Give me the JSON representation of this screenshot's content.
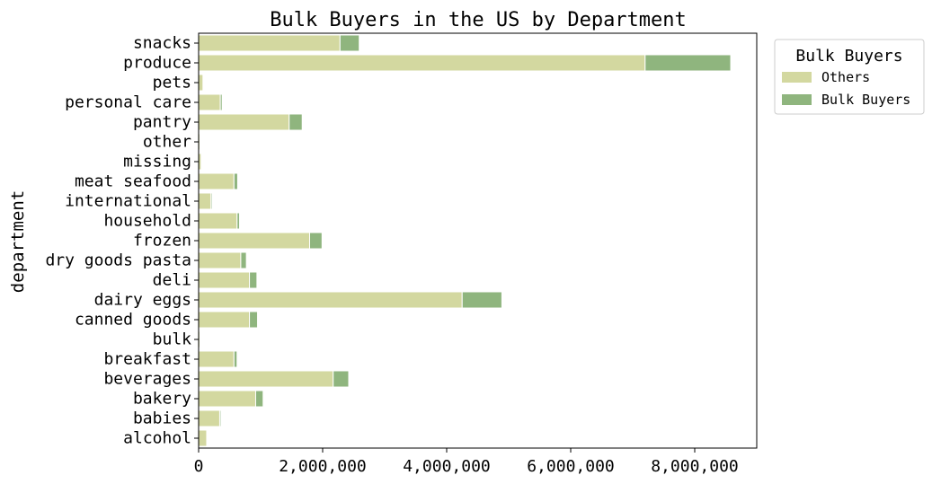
{
  "chart_data": {
    "type": "bar",
    "orientation": "horizontal",
    "stacked": true,
    "title": "Bulk Buyers in the US by Department",
    "xlabel": "",
    "ylabel": "department",
    "xlim": [
      0,
      9000000
    ],
    "xticks": [
      0,
      2000000,
      4000000,
      6000000,
      8000000
    ],
    "xtick_labels": [
      "0",
      "2,000,000",
      "4,000,000",
      "6,000,000",
      "8,000,000"
    ],
    "grid": false,
    "legend": {
      "title": "Bulk Buyers",
      "placement": "outside-top-right"
    },
    "categories": [
      "alcohol",
      "babies",
      "bakery",
      "beverages",
      "breakfast",
      "bulk",
      "canned goods",
      "dairy eggs",
      "deli",
      "dry goods pasta",
      "frozen",
      "household",
      "international",
      "meat seafood",
      "missing",
      "other",
      "pantry",
      "personal care",
      "pets",
      "produce",
      "snacks"
    ],
    "series": [
      {
        "name": "Others",
        "color": "#d3d8a0",
        "values": [
          130000,
          340000,
          920000,
          2170000,
          570000,
          20000,
          820000,
          4250000,
          820000,
          680000,
          1790000,
          620000,
          200000,
          570000,
          40000,
          20000,
          1460000,
          350000,
          70000,
          7200000,
          2280000
        ]
      },
      {
        "name": "Bulk Buyers",
        "color": "#8fb57e",
        "values": [
          10000,
          20000,
          120000,
          250000,
          50000,
          0,
          130000,
          640000,
          120000,
          90000,
          200000,
          40000,
          20000,
          60000,
          0,
          0,
          210000,
          30000,
          0,
          1380000,
          310000
        ]
      }
    ]
  }
}
